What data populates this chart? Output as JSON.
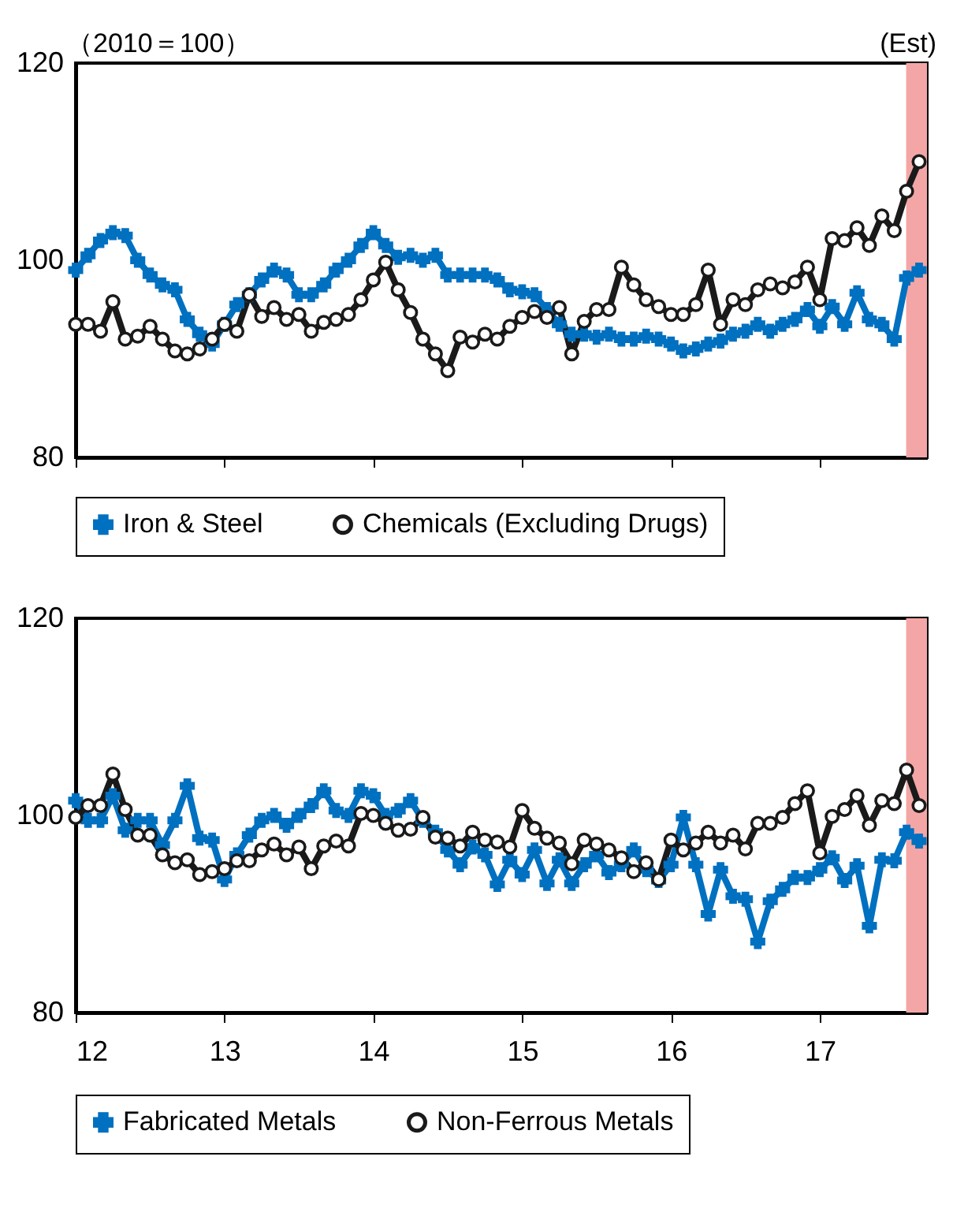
{
  "chart_data": [
    {
      "type": "line",
      "annotations": [
        "（2010＝100）",
        "(Est)"
      ],
      "x": [
        12,
        12.083,
        12.167,
        12.25,
        12.333,
        12.417,
        12.5,
        12.583,
        12.667,
        12.75,
        12.833,
        12.917,
        13,
        13.083,
        13.167,
        13.25,
        13.333,
        13.417,
        13.5,
        13.583,
        13.667,
        13.75,
        13.833,
        13.917,
        14,
        14.083,
        14.167,
        14.25,
        14.333,
        14.417,
        14.5,
        14.583,
        14.667,
        14.75,
        14.833,
        14.917,
        15,
        15.083,
        15.167,
        15.25,
        15.333,
        15.417,
        15.5,
        15.583,
        15.667,
        15.75,
        15.833,
        15.917,
        16,
        16.083,
        16.167,
        16.25,
        16.333,
        16.417,
        16.5,
        16.583,
        16.667,
        16.75,
        16.833,
        16.917,
        17,
        17.083,
        17.167,
        17.25,
        17.333,
        17.417,
        17.5,
        17.583,
        17.667
      ],
      "series": [
        {
          "name": "Iron & Steel",
          "color": "#0070c0",
          "marker": "cross",
          "values": [
            99,
            100.5,
            102,
            102.8,
            102.5,
            100,
            98.5,
            97.5,
            97,
            94,
            92.5,
            91.5,
            93.5,
            95.5,
            96.5,
            98,
            99,
            98.5,
            96.5,
            96.5,
            97.5,
            99,
            100,
            101.5,
            102.8,
            101.5,
            100.3,
            100.5,
            100,
            100.5,
            98.5,
            98.5,
            98.5,
            98.5,
            98,
            97,
            96.8,
            96.5,
            95,
            93.5,
            92.5,
            92.5,
            92.2,
            92.5,
            92,
            92,
            92.3,
            92,
            91.5,
            90.8,
            91,
            91.5,
            91.8,
            92.5,
            92.8,
            93.5,
            92.8,
            93.5,
            94,
            95,
            93.3,
            95.3,
            93.5,
            96.7,
            94,
            93.5,
            92,
            98.2,
            99
          ]
        },
        {
          "name": "Chemicals (Excluding Drugs)",
          "color": "#1a1a1a",
          "marker": "circle",
          "values": [
            93.5,
            93.5,
            92.8,
            95.8,
            92,
            92.3,
            93.3,
            92,
            90.8,
            90.5,
            91,
            92,
            93.5,
            92.8,
            96.5,
            94.3,
            95.2,
            94,
            94.5,
            92.8,
            93.7,
            94,
            94.5,
            96,
            98,
            99.8,
            97,
            94.7,
            92,
            90.5,
            88.8,
            92.2,
            91.7,
            92.5,
            92,
            93.3,
            94.2,
            94.8,
            94.2,
            95.2,
            90.5,
            93.8,
            95,
            95,
            99.3,
            97.5,
            96,
            95.3,
            94.5,
            94.5,
            95.5,
            99,
            93.5,
            96,
            95.5,
            97,
            97.6,
            97.2,
            97.8,
            99.3,
            96,
            102.2,
            102,
            103.3,
            101.5,
            104.5,
            103,
            107,
            110
          ]
        }
      ],
      "xlim": [
        12,
        17.72
      ],
      "xticks": [
        12,
        13,
        14,
        15,
        16,
        17
      ],
      "ylim": [
        80,
        120
      ],
      "yticks": [
        80,
        100,
        120
      ],
      "tick_labels": "y",
      "grid": false,
      "legend": "bottom",
      "line_style": "solid",
      "bands": [
        {
          "axis": "x",
          "from": 17.58,
          "to": 17.72,
          "color": "#f4a6a6"
        }
      ]
    },
    {
      "type": "line",
      "x": [
        12,
        12.083,
        12.167,
        12.25,
        12.333,
        12.417,
        12.5,
        12.583,
        12.667,
        12.75,
        12.833,
        12.917,
        13,
        13.083,
        13.167,
        13.25,
        13.333,
        13.417,
        13.5,
        13.583,
        13.667,
        13.75,
        13.833,
        13.917,
        14,
        14.083,
        14.167,
        14.25,
        14.333,
        14.417,
        14.5,
        14.583,
        14.667,
        14.75,
        14.833,
        14.917,
        15,
        15.083,
        15.167,
        15.25,
        15.333,
        15.417,
        15.5,
        15.583,
        15.667,
        15.75,
        15.833,
        15.917,
        16,
        16.083,
        16.167,
        16.25,
        16.333,
        16.417,
        16.5,
        16.583,
        16.667,
        16.75,
        16.833,
        16.917,
        17,
        17.083,
        17.167,
        17.25,
        17.333,
        17.417,
        17.5,
        17.583,
        17.667
      ],
      "series": [
        {
          "name": "Fabricated Metals",
          "color": "#0070c0",
          "marker": "cross",
          "values": [
            101.5,
            99.5,
            99.5,
            102,
            98.5,
            99.5,
            99.5,
            97,
            99.5,
            103,
            97.7,
            97.5,
            93.5,
            96,
            98,
            99.5,
            100,
            99,
            100,
            101,
            102.5,
            100.5,
            100,
            102.5,
            102,
            100,
            100.5,
            101.5,
            99.5,
            98.3,
            96.5,
            95,
            96.8,
            96,
            93,
            95.5,
            94,
            96.5,
            93.1,
            95.5,
            93.1,
            95,
            96,
            94.2,
            95,
            96.5,
            94.5,
            93.4,
            95,
            99.8,
            95,
            90,
            94.5,
            91.8,
            91.5,
            87.2,
            91.3,
            92.5,
            93.7,
            93.7,
            94.5,
            95.7,
            93.4,
            94.9,
            88.8,
            95.5,
            95.4,
            98.3,
            97.4
          ]
        },
        {
          "name": "Non-Ferrous Metals",
          "color": "#1a1a1a",
          "marker": "circle",
          "values": [
            99.8,
            101,
            101,
            104.2,
            100.6,
            98,
            98,
            96,
            95.2,
            95.5,
            94,
            94.3,
            94.6,
            95.4,
            95.4,
            96.5,
            97.1,
            96,
            96.8,
            94.6,
            96.9,
            97.4,
            96.9,
            100.2,
            100,
            99.2,
            98.5,
            98.6,
            99.8,
            97.8,
            97.7,
            96.9,
            98.3,
            97.5,
            97.3,
            96.8,
            100.5,
            98.7,
            97.7,
            97.2,
            95.1,
            97.5,
            97.1,
            96.5,
            95.7,
            94.3,
            95.2,
            93.5,
            97.5,
            96.5,
            97.2,
            98.3,
            97.2,
            98,
            96.6,
            99.2,
            99.2,
            99.8,
            101.2,
            102.5,
            96.2,
            99.9,
            100.6,
            102,
            99,
            101.5,
            101.2,
            104.6,
            101
          ]
        }
      ],
      "xlim": [
        12,
        17.72
      ],
      "xticks": [
        12,
        13,
        14,
        15,
        16,
        17
      ],
      "ylim": [
        80,
        120
      ],
      "yticks": [
        80,
        100,
        120
      ],
      "grid": false,
      "legend": "bottom",
      "line_style": "solid",
      "bands": [
        {
          "axis": "x",
          "from": 17.58,
          "to": 17.72,
          "color": "#f4a6a6"
        }
      ]
    }
  ]
}
